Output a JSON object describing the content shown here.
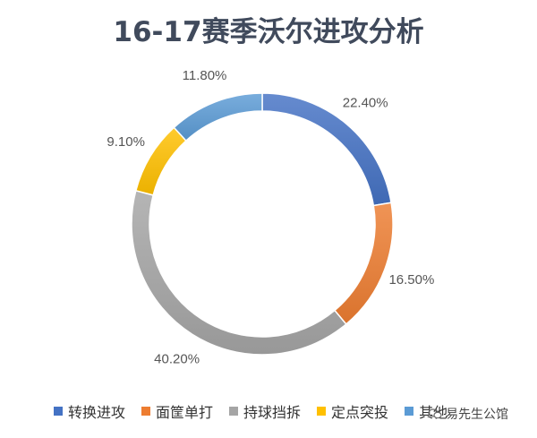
{
  "chart_data": {
    "type": "pie",
    "title": "16-17赛季沃尔进攻分析",
    "categories": [
      "转换进攻",
      "面筐单打",
      "持球挡拆",
      "定点突投",
      "其他"
    ],
    "values": [
      22.4,
      16.5,
      40.2,
      9.1,
      11.8
    ],
    "labels": [
      "22.40%",
      "16.50%",
      "40.20%",
      "9.10%",
      "11.80%"
    ],
    "colors": [
      "#4472c4",
      "#ed7d31",
      "#a5a5a5",
      "#ffc000",
      "#5b9bd5"
    ],
    "legend_position": "bottom"
  },
  "watermark": {
    "text": "易先生公馆",
    "icon": "chat-bubble-icon"
  }
}
